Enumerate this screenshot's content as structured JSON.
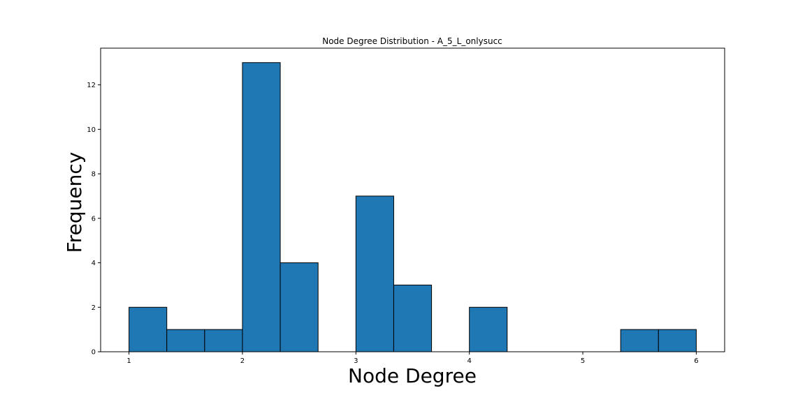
{
  "chart_data": {
    "type": "bar",
    "title": "Node Degree Distribution - A_5_L_onlysucc",
    "xlabel": "Node Degree",
    "ylabel": "Frequency",
    "bin_edges": [
      1.0,
      1.3333,
      1.6667,
      2.0,
      2.3333,
      2.6667,
      3.0,
      3.3333,
      3.6667,
      4.0,
      4.3333,
      4.6667,
      5.0,
      5.3333,
      5.6667,
      6.0
    ],
    "values": [
      2,
      1,
      1,
      13,
      4,
      0,
      7,
      3,
      0,
      2,
      0,
      0,
      0,
      1,
      1
    ],
    "xlim": [
      0.75,
      6.25
    ],
    "ylim": [
      0,
      13.65
    ],
    "xticks": [
      1,
      2,
      3,
      4,
      5,
      6
    ],
    "yticks": [
      0,
      2,
      4,
      6,
      8,
      10,
      12
    ],
    "grid": false,
    "legend": "none",
    "bar_color": "#1f77b4",
    "edge_color": "#000000"
  }
}
